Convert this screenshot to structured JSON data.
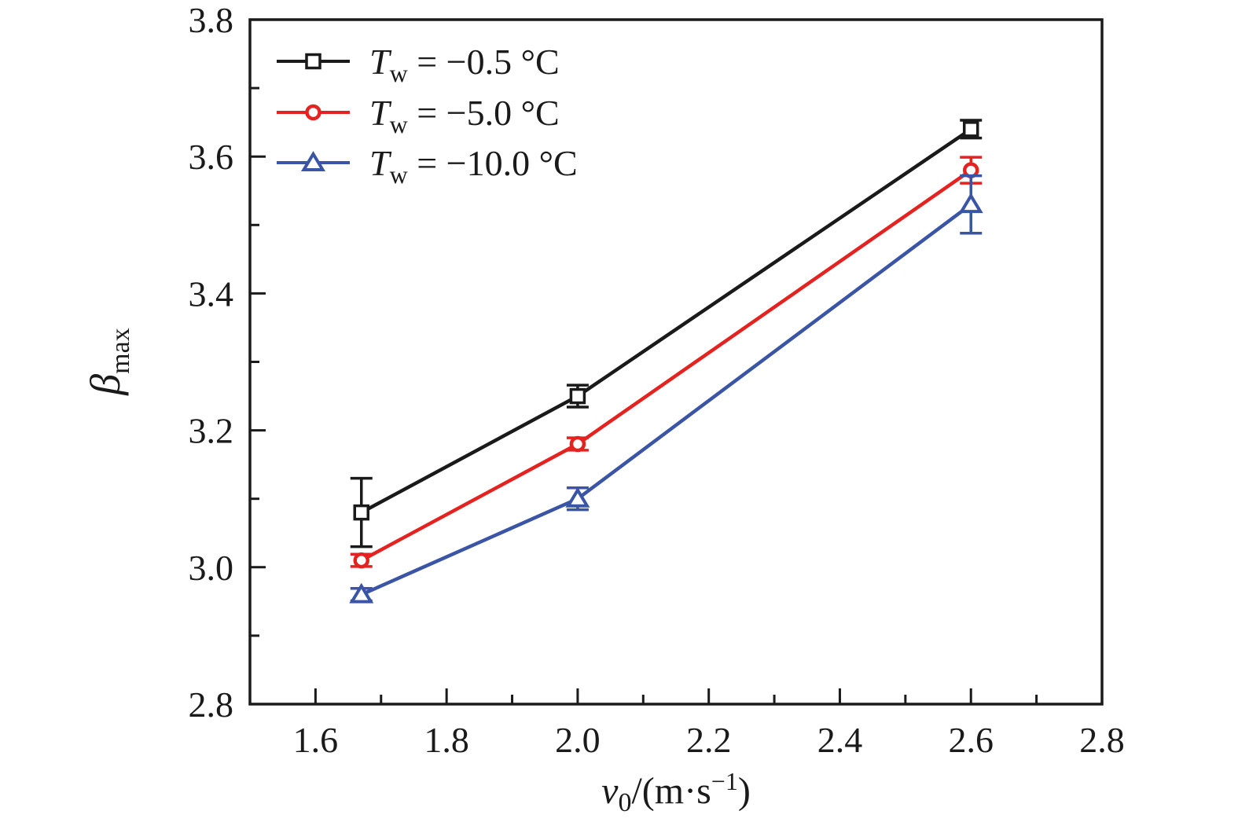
{
  "figure": {
    "background": "#ffffff",
    "axis_color": "#1a1a1a"
  },
  "chart_data": {
    "type": "line",
    "title": "",
    "xlabel": {
      "symbol": "v",
      "subscript": "0",
      "unit_pre": "/(m·s",
      "unit_sup": "−1",
      "unit_post": ")"
    },
    "ylabel": {
      "symbol": "β",
      "subscript": "max"
    },
    "xlim": [
      1.5,
      2.8
    ],
    "ylim": [
      2.8,
      3.8
    ],
    "x_major_ticks": [
      1.6,
      1.8,
      2.0,
      2.2,
      2.4,
      2.6,
      2.8
    ],
    "x_tick_labels": [
      "1.6",
      "1.8",
      "2.0",
      "2.2",
      "2.4",
      "2.6",
      "2.8"
    ],
    "x_minor_ticks": [
      1.7,
      1.9,
      2.1,
      2.3,
      2.5,
      2.7
    ],
    "y_major_ticks": [
      2.8,
      3.0,
      3.2,
      3.4,
      3.6,
      3.8
    ],
    "y_tick_labels": [
      "2.8",
      "3.0",
      "3.2",
      "3.4",
      "3.6",
      "3.8"
    ],
    "y_minor_ticks": [
      2.9,
      3.1,
      3.3,
      3.5,
      3.7
    ],
    "grid": false,
    "legend_position": "top-left-inside",
    "x": [
      1.67,
      2.0,
      2.6
    ],
    "series": [
      {
        "name": "Tw = −0.5 °C",
        "legend": {
          "symbol": "T",
          "subscript": "w",
          "value": "= −0.5 °C"
        },
        "marker": "square",
        "color": "#1a1a1a",
        "y": [
          3.08,
          3.25,
          3.64
        ],
        "yerr": [
          0.05,
          0.016,
          0.013
        ]
      },
      {
        "name": "Tw = −5.0 °C",
        "legend": {
          "symbol": "T",
          "subscript": "w",
          "value": "= −5.0 °C"
        },
        "marker": "circle",
        "color": "#e42320",
        "y": [
          3.01,
          3.18,
          3.58
        ],
        "yerr": [
          0.009,
          0.009,
          0.019
        ]
      },
      {
        "name": "Tw = −10.0 °C",
        "legend": {
          "symbol": "T",
          "subscript": "w",
          "value": "= −10.0 °C"
        },
        "marker": "triangle",
        "color": "#3a55a6",
        "y": [
          2.96,
          3.1,
          3.53
        ],
        "yerr": [
          0.009,
          0.016,
          0.042
        ]
      }
    ]
  }
}
